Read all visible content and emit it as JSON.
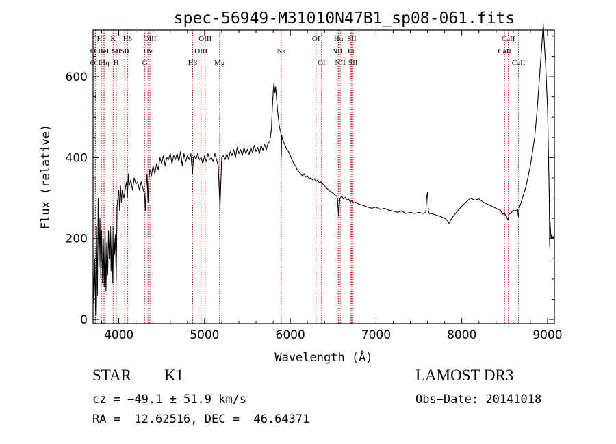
{
  "chart_data": {
    "type": "line",
    "title": "spec-56949-M31010N47B1_sp08-061.fits",
    "xlabel": "Wavelength (Å)",
    "ylabel": "Flux (relative)",
    "xlim": [
      3700,
      9080
    ],
    "ylim": [
      -10,
      715
    ],
    "xticks": [
      4000,
      5000,
      6000,
      7000,
      8000,
      9000
    ],
    "yticks": [
      0,
      200,
      400,
      600
    ],
    "grid": false,
    "series": [
      {
        "name": "flux",
        "points": [
          [
            3700,
            120
          ],
          [
            3710,
            40
          ],
          [
            3720,
            150
          ],
          [
            3730,
            10
          ],
          [
            3740,
            230
          ],
          [
            3750,
            60
          ],
          [
            3760,
            300
          ],
          [
            3770,
            130
          ],
          [
            3780,
            250
          ],
          [
            3790,
            100
          ],
          [
            3800,
            220
          ],
          [
            3810,
            90
          ],
          [
            3820,
            200
          ],
          [
            3830,
            80
          ],
          [
            3840,
            230
          ],
          [
            3850,
            70
          ],
          [
            3860,
            190
          ],
          [
            3870,
            110
          ],
          [
            3880,
            220
          ],
          [
            3890,
            150
          ],
          [
            3900,
            230
          ],
          [
            3910,
            120
          ],
          [
            3920,
            240
          ],
          [
            3930,
            90
          ],
          [
            3940,
            230
          ],
          [
            3950,
            160
          ],
          [
            3960,
            210
          ],
          [
            3970,
            95
          ],
          [
            3980,
            280
          ],
          [
            3990,
            300
          ],
          [
            4000,
            320
          ],
          [
            4010,
            270
          ],
          [
            4020,
            330
          ],
          [
            4030,
            290
          ],
          [
            4040,
            320
          ],
          [
            4060,
            300
          ],
          [
            4080,
            330
          ],
          [
            4090,
            340
          ],
          [
            4100,
            300
          ],
          [
            4110,
            360
          ],
          [
            4120,
            330
          ],
          [
            4140,
            345
          ],
          [
            4160,
            320
          ],
          [
            4180,
            350
          ],
          [
            4200,
            335
          ],
          [
            4220,
            340
          ],
          [
            4240,
            320
          ],
          [
            4260,
            340
          ],
          [
            4280,
            325
          ],
          [
            4300,
            310
          ],
          [
            4310,
            270
          ],
          [
            4320,
            330
          ],
          [
            4330,
            360
          ],
          [
            4340,
            290
          ],
          [
            4350,
            340
          ],
          [
            4360,
            370
          ],
          [
            4380,
            355
          ],
          [
            4400,
            380
          ],
          [
            4420,
            360
          ],
          [
            4440,
            385
          ],
          [
            4460,
            370
          ],
          [
            4480,
            400
          ],
          [
            4500,
            385
          ],
          [
            4520,
            405
          ],
          [
            4540,
            380
          ],
          [
            4560,
            400
          ],
          [
            4580,
            395
          ],
          [
            4600,
            410
          ],
          [
            4620,
            385
          ],
          [
            4640,
            405
          ],
          [
            4660,
            395
          ],
          [
            4680,
            410
          ],
          [
            4700,
            390
          ],
          [
            4720,
            415
          ],
          [
            4740,
            380
          ],
          [
            4760,
            410
          ],
          [
            4780,
            390
          ],
          [
            4800,
            405
          ],
          [
            4820,
            395
          ],
          [
            4840,
            410
          ],
          [
            4860,
            360
          ],
          [
            4870,
            400
          ],
          [
            4880,
            405
          ],
          [
            4900,
            395
          ],
          [
            4920,
            410
          ],
          [
            4940,
            395
          ],
          [
            4960,
            400
          ],
          [
            4980,
            385
          ],
          [
            5000,
            405
          ],
          [
            5020,
            390
          ],
          [
            5040,
            410
          ],
          [
            5060,
            395
          ],
          [
            5080,
            400
          ],
          [
            5100,
            390
          ],
          [
            5120,
            410
          ],
          [
            5140,
            395
          ],
          [
            5160,
            380
          ],
          [
            5175,
            300
          ],
          [
            5180,
            275
          ],
          [
            5190,
            340
          ],
          [
            5200,
            400
          ],
          [
            5220,
            405
          ],
          [
            5240,
            395
          ],
          [
            5260,
            410
          ],
          [
            5280,
            395
          ],
          [
            5300,
            415
          ],
          [
            5320,
            405
          ],
          [
            5340,
            420
          ],
          [
            5360,
            400
          ],
          [
            5380,
            425
          ],
          [
            5400,
            410
          ],
          [
            5420,
            420
          ],
          [
            5440,
            405
          ],
          [
            5460,
            425
          ],
          [
            5480,
            410
          ],
          [
            5500,
            420
          ],
          [
            5520,
            408
          ],
          [
            5540,
            425
          ],
          [
            5560,
            412
          ],
          [
            5580,
            430
          ],
          [
            5600,
            415
          ],
          [
            5620,
            425
          ],
          [
            5640,
            410
          ],
          [
            5660,
            430
          ],
          [
            5680,
            418
          ],
          [
            5700,
            432
          ],
          [
            5720,
            420
          ],
          [
            5740,
            435
          ],
          [
            5760,
            440
          ],
          [
            5780,
            470
          ],
          [
            5790,
            520
          ],
          [
            5800,
            560
          ],
          [
            5810,
            585
          ],
          [
            5820,
            560
          ],
          [
            5830,
            575
          ],
          [
            5840,
            545
          ],
          [
            5850,
            520
          ],
          [
            5860,
            500
          ],
          [
            5870,
            480
          ],
          [
            5880,
            470
          ],
          [
            5890,
            460
          ],
          [
            5895,
            400
          ],
          [
            5900,
            455
          ],
          [
            5910,
            445
          ],
          [
            5920,
            440
          ],
          [
            5940,
            430
          ],
          [
            5960,
            420
          ],
          [
            5980,
            415
          ],
          [
            6000,
            405
          ],
          [
            6020,
            395
          ],
          [
            6040,
            385
          ],
          [
            6060,
            380
          ],
          [
            6080,
            370
          ],
          [
            6100,
            365
          ],
          [
            6120,
            360
          ],
          [
            6140,
            355
          ],
          [
            6160,
            360
          ],
          [
            6180,
            352
          ],
          [
            6200,
            355
          ],
          [
            6220,
            348
          ],
          [
            6240,
            350
          ],
          [
            6260,
            345
          ],
          [
            6280,
            348
          ],
          [
            6300,
            342
          ],
          [
            6320,
            345
          ],
          [
            6340,
            338
          ],
          [
            6360,
            340
          ],
          [
            6380,
            335
          ],
          [
            6400,
            330
          ],
          [
            6420,
            325
          ],
          [
            6440,
            322
          ],
          [
            6460,
            318
          ],
          [
            6480,
            315
          ],
          [
            6500,
            312
          ],
          [
            6520,
            308
          ],
          [
            6540,
            305
          ],
          [
            6550,
            300
          ],
          [
            6560,
            270
          ],
          [
            6565,
            255
          ],
          [
            6570,
            280
          ],
          [
            6580,
            300
          ],
          [
            6600,
            305
          ],
          [
            6620,
            298
          ],
          [
            6640,
            302
          ],
          [
            6660,
            295
          ],
          [
            6680,
            298
          ],
          [
            6700,
            290
          ],
          [
            6720,
            295
          ],
          [
            6740,
            288
          ],
          [
            6760,
            290
          ],
          [
            6800,
            285
          ],
          [
            6850,
            282
          ],
          [
            6900,
            278
          ],
          [
            6950,
            275
          ],
          [
            7000,
            278
          ],
          [
            7050,
            272
          ],
          [
            7100,
            275
          ],
          [
            7150,
            270
          ],
          [
            7200,
            268
          ],
          [
            7250,
            265
          ],
          [
            7300,
            268
          ],
          [
            7350,
            262
          ],
          [
            7400,
            265
          ],
          [
            7450,
            262
          ],
          [
            7500,
            265
          ],
          [
            7550,
            262
          ],
          [
            7580,
            265
          ],
          [
            7590,
            300
          ],
          [
            7600,
            315
          ],
          [
            7610,
            270
          ],
          [
            7620,
            262
          ],
          [
            7650,
            262
          ],
          [
            7700,
            258
          ],
          [
            7750,
            255
          ],
          [
            7800,
            250
          ],
          [
            7830,
            245
          ],
          [
            7850,
            238
          ],
          [
            7870,
            245
          ],
          [
            7900,
            255
          ],
          [
            7950,
            268
          ],
          [
            8000,
            280
          ],
          [
            8050,
            290
          ],
          [
            8100,
            300
          ],
          [
            8150,
            295
          ],
          [
            8200,
            298
          ],
          [
            8250,
            290
          ],
          [
            8300,
            285
          ],
          [
            8350,
            280
          ],
          [
            8400,
            275
          ],
          [
            8450,
            270
          ],
          [
            8480,
            260
          ],
          [
            8500,
            262
          ],
          [
            8520,
            255
          ],
          [
            8540,
            245
          ],
          [
            8550,
            260
          ],
          [
            8580,
            265
          ],
          [
            8600,
            270
          ],
          [
            8620,
            268
          ],
          [
            8650,
            272
          ],
          [
            8660,
            255
          ],
          [
            8670,
            275
          ],
          [
            8700,
            295
          ],
          [
            8750,
            330
          ],
          [
            8800,
            380
          ],
          [
            8850,
            450
          ],
          [
            8880,
            520
          ],
          [
            8900,
            580
          ],
          [
            8920,
            640
          ],
          [
            8940,
            700
          ],
          [
            8950,
            730
          ],
          [
            8960,
            690
          ],
          [
            8980,
            620
          ],
          [
            9000,
            520
          ],
          [
            9010,
            420
          ],
          [
            9020,
            300
          ],
          [
            9025,
            180
          ],
          [
            9030,
            240
          ],
          [
            9040,
            200
          ],
          [
            9050,
            210
          ],
          [
            9060,
            200
          ],
          [
            9070,
            205
          ],
          [
            9080,
            200
          ]
        ]
      }
    ],
    "spectral_lines": [
      {
        "label": "Hθ",
        "x": 3797,
        "row": 0
      },
      {
        "label": "OII",
        "x": 3727,
        "row": 1
      },
      {
        "label": "OII",
        "x": 3727,
        "row": 2
      },
      {
        "label": "HeI",
        "x": 3820,
        "row": 1
      },
      {
        "label": "Hη",
        "x": 3835,
        "row": 2
      },
      {
        "label": "K",
        "x": 3934,
        "row": 0
      },
      {
        "label": "SII",
        "x": 3970,
        "row": 1
      },
      {
        "label": "H",
        "x": 3968,
        "row": 2
      },
      {
        "label": "Hδ",
        "x": 4102,
        "row": 0
      },
      {
        "label": "SII",
        "x": 4069,
        "row": 1
      },
      {
        "label": "OIII",
        "x": 4363,
        "row": 0
      },
      {
        "label": "Hγ",
        "x": 4340,
        "row": 1
      },
      {
        "label": "G",
        "x": 4304,
        "row": 2
      },
      {
        "label": "Hβ",
        "x": 4861,
        "row": 2
      },
      {
        "label": "OIII",
        "x": 5007,
        "row": 0
      },
      {
        "label": "OIII",
        "x": 4959,
        "row": 1
      },
      {
        "label": "Mg",
        "x": 5175,
        "row": 2
      },
      {
        "label": "Na",
        "x": 5894,
        "row": 1
      },
      {
        "label": "OI",
        "x": 6300,
        "row": 0
      },
      {
        "label": "OI",
        "x": 6364,
        "row": 2
      },
      {
        "label": "Hα",
        "x": 6563,
        "row": 0
      },
      {
        "label": "NII",
        "x": 6548,
        "row": 1
      },
      {
        "label": "NII",
        "x": 6583,
        "row": 2
      },
      {
        "label": "SII",
        "x": 6717,
        "row": 0
      },
      {
        "label": "Li",
        "x": 6708,
        "row": 1
      },
      {
        "label": "SII",
        "x": 6731,
        "row": 2
      },
      {
        "label": "CaII",
        "x": 8542,
        "row": 0
      },
      {
        "label": "CaII",
        "x": 8498,
        "row": 1
      },
      {
        "label": "CaII",
        "x": 8662,
        "row": 2
      }
    ],
    "line_color": "#000000",
    "marker_line_color": "#cc0000"
  },
  "info": {
    "object_class": "STAR",
    "subclass": "K1",
    "survey": "LAMOST DR3",
    "cz": "cz = −49.1 ± 51.9 km/s",
    "obs_date": "Obs−Date: 20141018",
    "coords": "RA =  12.62516, DEC =  46.64371"
  }
}
